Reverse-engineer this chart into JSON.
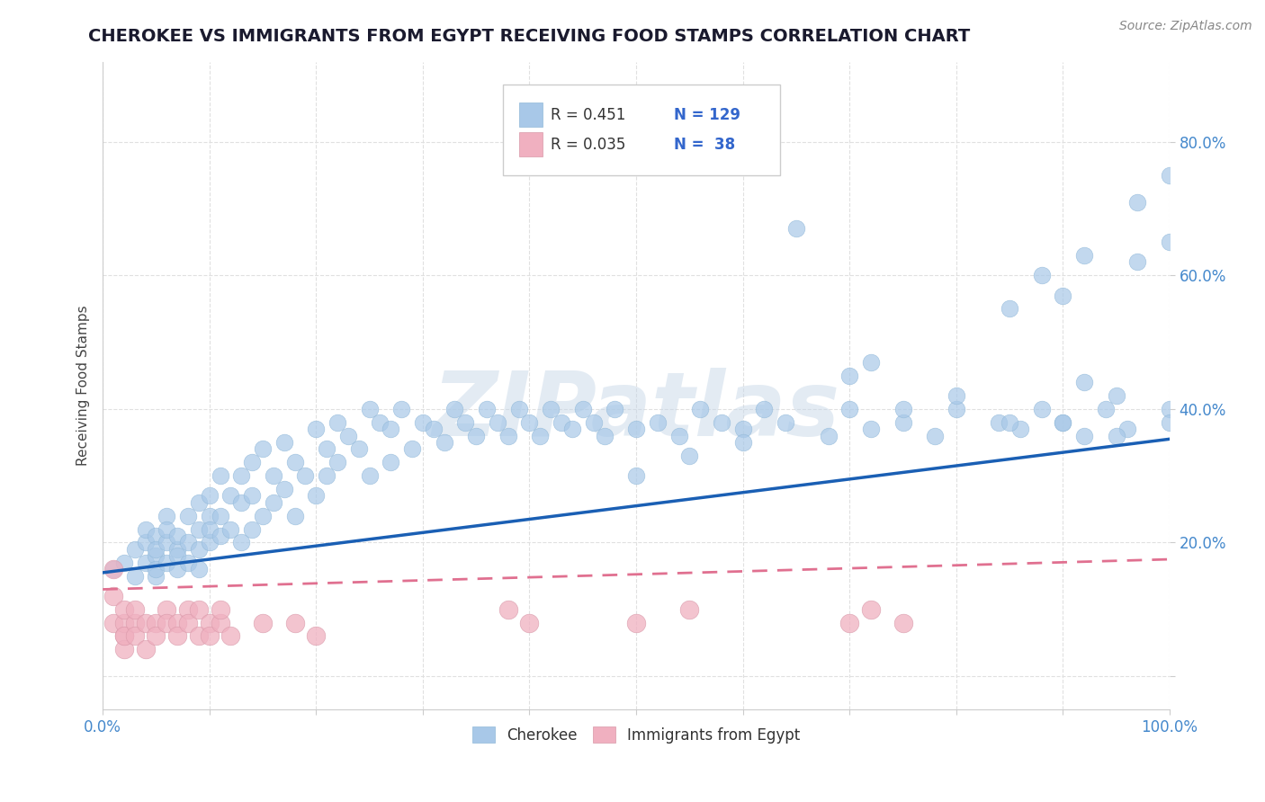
{
  "title": "CHEROKEE VS IMMIGRANTS FROM EGYPT RECEIVING FOOD STAMPS CORRELATION CHART",
  "source": "Source: ZipAtlas.com",
  "ylabel": "Receiving Food Stamps",
  "xlim": [
    0.0,
    1.0
  ],
  "ylim": [
    -0.05,
    0.92
  ],
  "xticks": [
    0.0,
    0.1,
    0.2,
    0.3,
    0.4,
    0.5,
    0.6,
    0.7,
    0.8,
    0.9,
    1.0
  ],
  "ytick_positions": [
    0.0,
    0.2,
    0.4,
    0.6,
    0.8
  ],
  "title_fontsize": 14,
  "watermark_text": "ZIPatlas",
  "watermark_color": "#c8d8e8",
  "watermark_fontsize": 72,
  "legend_r1": "0.451",
  "legend_n1": "129",
  "legend_r2": "0.035",
  "legend_n2": " 38",
  "legend_label1": "Cherokee",
  "legend_label2": "Immigrants from Egypt",
  "source_fontsize": 10,
  "source_color": "#888888",
  "blue_color": "#a8c8e8",
  "pink_color": "#f0b0c0",
  "blue_line_color": "#1a5fb4",
  "pink_line_color": "#e07090",
  "axis_color": "#cccccc",
  "grid_color": "#e0e0e0",
  "tick_color": "#4488cc",
  "cherokee_x": [
    0.01,
    0.02,
    0.03,
    0.03,
    0.04,
    0.04,
    0.04,
    0.05,
    0.05,
    0.05,
    0.05,
    0.05,
    0.06,
    0.06,
    0.06,
    0.06,
    0.07,
    0.07,
    0.07,
    0.07,
    0.08,
    0.08,
    0.08,
    0.09,
    0.09,
    0.09,
    0.09,
    0.1,
    0.1,
    0.1,
    0.1,
    0.11,
    0.11,
    0.11,
    0.12,
    0.12,
    0.13,
    0.13,
    0.13,
    0.14,
    0.14,
    0.14,
    0.15,
    0.15,
    0.16,
    0.16,
    0.17,
    0.17,
    0.18,
    0.18,
    0.19,
    0.2,
    0.2,
    0.21,
    0.21,
    0.22,
    0.22,
    0.23,
    0.24,
    0.25,
    0.25,
    0.26,
    0.27,
    0.27,
    0.28,
    0.29,
    0.3,
    0.31,
    0.32,
    0.33,
    0.34,
    0.35,
    0.36,
    0.37,
    0.38,
    0.39,
    0.4,
    0.41,
    0.42,
    0.43,
    0.44,
    0.45,
    0.46,
    0.47,
    0.48,
    0.5,
    0.52,
    0.54,
    0.56,
    0.58,
    0.6,
    0.62,
    0.64,
    0.68,
    0.7,
    0.72,
    0.75,
    0.78,
    0.8,
    0.84,
    0.86,
    0.88,
    0.9,
    0.92,
    0.94,
    0.96,
    0.5,
    0.55,
    0.6,
    0.65,
    0.7,
    0.72,
    0.75,
    0.8,
    0.85,
    0.88,
    0.9,
    0.92,
    0.95,
    0.97,
    1.0,
    0.85,
    0.9,
    0.92,
    0.95,
    0.97,
    1.0,
    1.0,
    1.0
  ],
  "cherokee_y": [
    0.16,
    0.17,
    0.19,
    0.15,
    0.2,
    0.17,
    0.22,
    0.15,
    0.18,
    0.21,
    0.16,
    0.19,
    0.17,
    0.2,
    0.24,
    0.22,
    0.16,
    0.19,
    0.21,
    0.18,
    0.24,
    0.2,
    0.17,
    0.22,
    0.26,
    0.19,
    0.16,
    0.27,
    0.2,
    0.24,
    0.22,
    0.3,
    0.24,
    0.21,
    0.27,
    0.22,
    0.3,
    0.26,
    0.2,
    0.32,
    0.27,
    0.22,
    0.34,
    0.24,
    0.3,
    0.26,
    0.35,
    0.28,
    0.32,
    0.24,
    0.3,
    0.37,
    0.27,
    0.34,
    0.3,
    0.38,
    0.32,
    0.36,
    0.34,
    0.4,
    0.3,
    0.38,
    0.37,
    0.32,
    0.4,
    0.34,
    0.38,
    0.37,
    0.35,
    0.4,
    0.38,
    0.36,
    0.4,
    0.38,
    0.36,
    0.4,
    0.38,
    0.36,
    0.4,
    0.38,
    0.37,
    0.4,
    0.38,
    0.36,
    0.4,
    0.37,
    0.38,
    0.36,
    0.4,
    0.38,
    0.37,
    0.4,
    0.38,
    0.36,
    0.4,
    0.37,
    0.38,
    0.36,
    0.4,
    0.38,
    0.37,
    0.4,
    0.38,
    0.36,
    0.4,
    0.37,
    0.3,
    0.33,
    0.35,
    0.67,
    0.45,
    0.47,
    0.4,
    0.42,
    0.38,
    0.6,
    0.57,
    0.63,
    0.42,
    0.71,
    0.75,
    0.55,
    0.38,
    0.44,
    0.36,
    0.62,
    0.65,
    0.4,
    0.38
  ],
  "egypt_x": [
    0.01,
    0.01,
    0.01,
    0.02,
    0.02,
    0.02,
    0.02,
    0.02,
    0.03,
    0.03,
    0.03,
    0.04,
    0.04,
    0.05,
    0.05,
    0.06,
    0.06,
    0.07,
    0.07,
    0.08,
    0.08,
    0.09,
    0.09,
    0.1,
    0.1,
    0.11,
    0.11,
    0.12,
    0.15,
    0.18,
    0.2,
    0.38,
    0.4,
    0.5,
    0.55,
    0.7,
    0.72,
    0.75
  ],
  "egypt_y": [
    0.12,
    0.08,
    0.16,
    0.06,
    0.04,
    0.08,
    0.1,
    0.06,
    0.08,
    0.1,
    0.06,
    0.08,
    0.04,
    0.08,
    0.06,
    0.1,
    0.08,
    0.08,
    0.06,
    0.1,
    0.08,
    0.06,
    0.1,
    0.08,
    0.06,
    0.08,
    0.1,
    0.06,
    0.08,
    0.08,
    0.06,
    0.1,
    0.08,
    0.08,
    0.1,
    0.08,
    0.1,
    0.08
  ],
  "cherokee_line_x0": 0.0,
  "cherokee_line_y0": 0.155,
  "cherokee_line_x1": 1.0,
  "cherokee_line_y1": 0.355,
  "egypt_line_x0": 0.0,
  "egypt_line_y0": 0.13,
  "egypt_line_x1": 1.0,
  "egypt_line_y1": 0.175
}
